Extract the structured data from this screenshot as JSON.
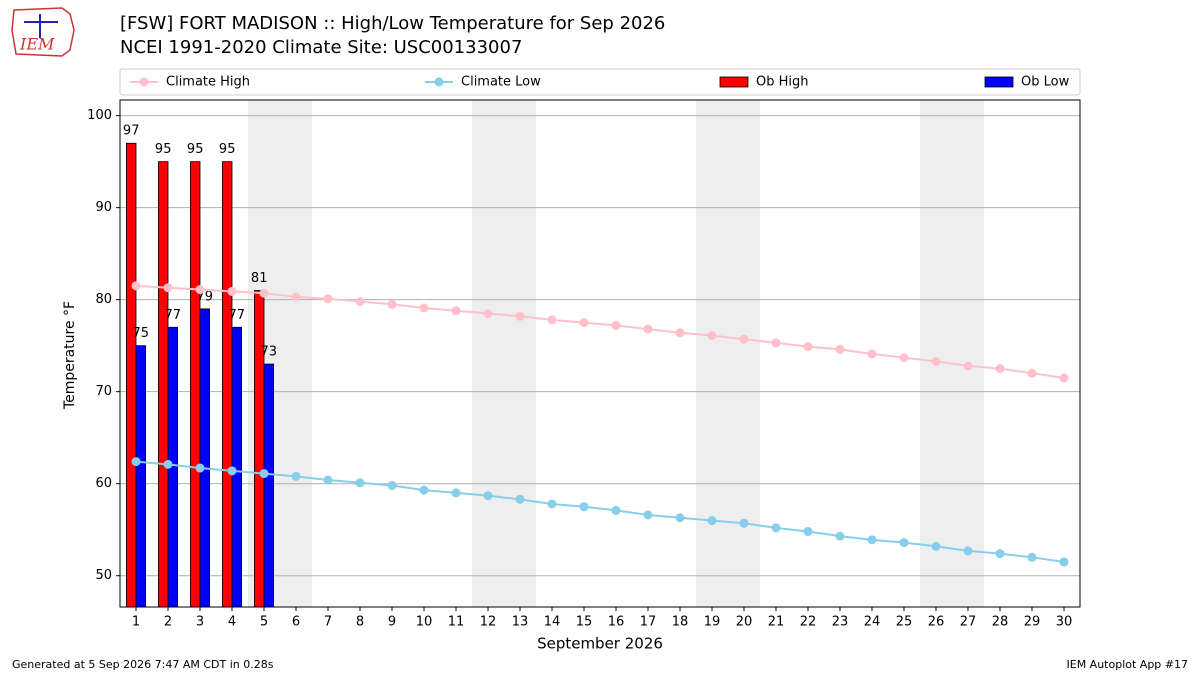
{
  "chart_data": {
    "type": "bar",
    "title": "[FSW] FORT MADISON :: High/Low Temperature for Sep 2026",
    "subtitle": "NCEI 1991-2020 Climate Site: USC00133007",
    "logo_text": "IEM",
    "x_label": "September 2026",
    "y_label": "Temperature °F",
    "x": [
      1,
      2,
      3,
      4,
      5,
      6,
      7,
      8,
      9,
      10,
      11,
      12,
      13,
      14,
      15,
      16,
      17,
      18,
      19,
      20,
      21,
      22,
      23,
      24,
      25,
      26,
      27,
      28,
      29,
      30
    ],
    "xlim": [
      0.5,
      30.5
    ],
    "xticks": [
      1,
      2,
      3,
      4,
      5,
      6,
      7,
      8,
      9,
      10,
      11,
      12,
      13,
      14,
      15,
      16,
      17,
      18,
      19,
      20,
      21,
      22,
      23,
      24,
      25,
      26,
      27,
      28,
      29,
      30
    ],
    "ylim": [
      46.6,
      101.7
    ],
    "yticks": [
      50,
      60,
      70,
      80,
      90,
      100
    ],
    "grid": true,
    "legend": "top",
    "shaded_days": [
      5,
      6,
      12,
      13,
      19,
      20,
      26,
      27
    ],
    "shade_color": "#eeeeee",
    "series": [
      {
        "name": "Climate High",
        "kind": "line",
        "color": "#ffc0cb",
        "values": [
          81.5,
          81.3,
          81.1,
          80.9,
          80.7,
          80.3,
          80.1,
          79.8,
          79.5,
          79.1,
          78.8,
          78.5,
          78.2,
          77.8,
          77.5,
          77.2,
          76.8,
          76.4,
          76.1,
          75.7,
          75.3,
          74.9,
          74.6,
          74.1,
          73.7,
          73.3,
          72.8,
          72.5,
          72.0,
          71.5
        ]
      },
      {
        "name": "Climate Low",
        "kind": "line",
        "color": "#87ceeb",
        "values": [
          62.4,
          62.1,
          61.7,
          61.4,
          61.1,
          60.8,
          60.4,
          60.1,
          59.8,
          59.3,
          59.0,
          58.7,
          58.3,
          57.8,
          57.5,
          57.1,
          56.6,
          56.3,
          56.0,
          55.7,
          55.2,
          54.8,
          54.3,
          53.9,
          53.6,
          53.2,
          52.7,
          52.4,
          52.0,
          51.5
        ]
      },
      {
        "name": "Ob High",
        "kind": "bar",
        "color": "#ff0000",
        "values": [
          97,
          95,
          95,
          95,
          81,
          null,
          null,
          null,
          null,
          null,
          null,
          null,
          null,
          null,
          null,
          null,
          null,
          null,
          null,
          null,
          null,
          null,
          null,
          null,
          null,
          null,
          null,
          null,
          null,
          null
        ]
      },
      {
        "name": "Ob Low",
        "kind": "bar",
        "color": "#0000ff",
        "values": [
          75,
          77,
          79,
          77,
          73,
          null,
          null,
          null,
          null,
          null,
          null,
          null,
          null,
          null,
          null,
          null,
          null,
          null,
          null,
          null,
          null,
          null,
          null,
          null,
          null,
          null,
          null,
          null,
          null,
          null
        ]
      }
    ],
    "footer_left": "Generated at 5 Sep 2026 7:47 AM CDT in 0.28s",
    "footer_right": "IEM Autoplot App #17"
  }
}
